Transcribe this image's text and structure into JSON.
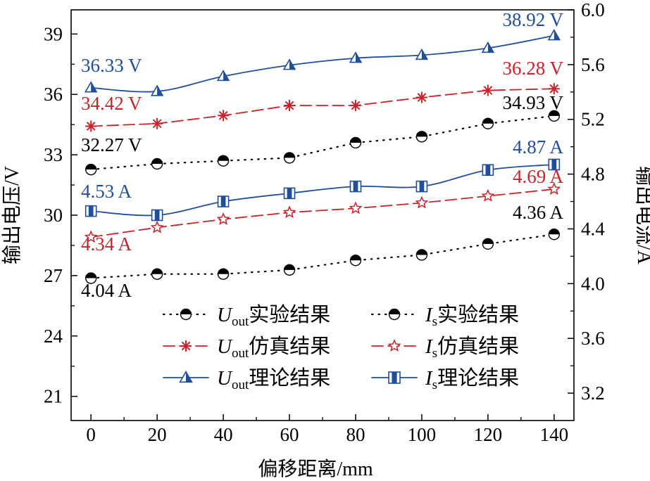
{
  "chart_data": {
    "type": "line",
    "xlabel": "偏移距离/mm",
    "ylabel_left": "输出电压/V",
    "ylabel_right": "输出电流/A",
    "x": [
      0,
      20,
      40,
      60,
      80,
      100,
      120,
      140
    ],
    "xlim": [
      -6,
      146
    ],
    "xticks": [
      "0",
      "20",
      "40",
      "60",
      "80",
      "100",
      "120",
      "140"
    ],
    "ylim_left": [
      19.8,
      40.2
    ],
    "yticks_left": [
      "21",
      "24",
      "27",
      "30",
      "33",
      "36",
      "39"
    ],
    "ylim_right": [
      3.0,
      6.0
    ],
    "yticks_right": [
      "3.2",
      "3.6",
      "4.0",
      "4.4",
      "4.8",
      "5.2",
      "5.6",
      "6.0"
    ],
    "grid": false,
    "legend_position": "bottom-center",
    "colors": {
      "experiment": "#000000",
      "simulation": "#cc2229",
      "theory": "#1f4e9c"
    },
    "series": [
      {
        "id": "uout_exp",
        "legend_main": "U",
        "legend_sub": "out",
        "legend_suffix": "实验结果",
        "axis": "left",
        "style": "dotted",
        "marker": "half-circle",
        "color_key": "experiment",
        "values": [
          32.27,
          32.55,
          32.7,
          32.85,
          33.6,
          33.9,
          34.55,
          34.93
        ]
      },
      {
        "id": "uout_sim",
        "legend_main": "U",
        "legend_sub": "out",
        "legend_suffix": "仿真结果",
        "axis": "left",
        "style": "dashed",
        "marker": "asterisk",
        "color_key": "simulation",
        "values": [
          34.42,
          34.55,
          34.95,
          35.45,
          35.45,
          35.85,
          36.2,
          36.28
        ]
      },
      {
        "id": "uout_theory",
        "legend_main": "U",
        "legend_sub": "out",
        "legend_suffix": "理论结果",
        "axis": "left",
        "style": "solid",
        "marker": "triangle",
        "color_key": "theory",
        "values": [
          36.33,
          36.15,
          36.9,
          37.45,
          37.8,
          37.95,
          38.3,
          38.92
        ]
      },
      {
        "id": "is_exp",
        "legend_main": "I",
        "legend_sub": "s",
        "legend_suffix": "实验结果",
        "axis": "right",
        "style": "dotted",
        "marker": "half-circle",
        "color_key": "experiment",
        "values": [
          4.04,
          4.07,
          4.07,
          4.1,
          4.17,
          4.21,
          4.29,
          4.36
        ]
      },
      {
        "id": "is_sim",
        "legend_main": "I",
        "legend_sub": "s",
        "legend_suffix": "仿真结果",
        "axis": "right",
        "style": "dashed",
        "marker": "star",
        "color_key": "simulation",
        "values": [
          4.34,
          4.41,
          4.47,
          4.52,
          4.55,
          4.59,
          4.64,
          4.69
        ]
      },
      {
        "id": "is_theory",
        "legend_main": "I",
        "legend_sub": "s",
        "legend_suffix": "理论结果",
        "axis": "right",
        "style": "solid",
        "marker": "square",
        "color_key": "theory",
        "values": [
          4.53,
          4.5,
          4.6,
          4.66,
          4.71,
          4.71,
          4.83,
          4.87
        ]
      }
    ],
    "annotations": [
      {
        "text": "36.33 V",
        "color_key": "theory"
      },
      {
        "text": "34.42 V",
        "color_key": "simulation"
      },
      {
        "text": "32.27 V",
        "color_key": "experiment"
      },
      {
        "text": "38.92 V",
        "color_key": "theory"
      },
      {
        "text": "36.28 V",
        "color_key": "simulation"
      },
      {
        "text": "34.93 V",
        "color_key": "experiment"
      },
      {
        "text": "4.53 A",
        "color_key": "theory"
      },
      {
        "text": "4.34 A",
        "color_key": "simulation"
      },
      {
        "text": "4.04 A",
        "color_key": "experiment"
      },
      {
        "text": "4.87 A",
        "color_key": "theory"
      },
      {
        "text": "4.69 A",
        "color_key": "simulation"
      },
      {
        "text": "4.36 A",
        "color_key": "experiment"
      }
    ]
  }
}
